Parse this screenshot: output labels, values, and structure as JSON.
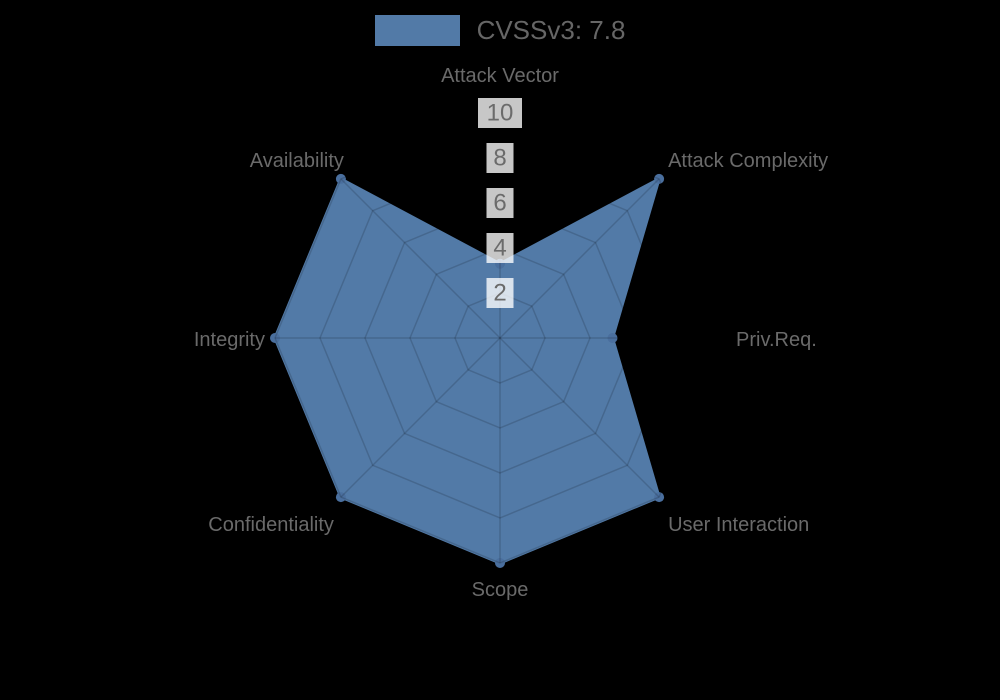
{
  "background_color": "#000000",
  "legend": {
    "label": "CVSSv3: 7.8",
    "swatch_color": "#527aa7",
    "text_color": "#666666"
  },
  "chart_data": {
    "type": "radar",
    "title": "CVSSv3: 7.8",
    "categories": [
      "Attack Vector",
      "Attack Complexity",
      "Priv.Req.",
      "User Interaction",
      "Scope",
      "Confidentiality",
      "Integrity",
      "Availability"
    ],
    "series": [
      {
        "name": "CVSSv3: 7.8",
        "values": [
          3.3,
          10,
          5,
          10,
          10,
          10,
          10,
          10
        ]
      }
    ],
    "scale": {
      "min": 0,
      "max": 10,
      "ticks": [
        2,
        4,
        6,
        8,
        10
      ]
    },
    "grid": true,
    "legend_position": "top",
    "colors": {
      "fill": "#527aa7",
      "border": "#527aa7",
      "marker": "#4a6f9e",
      "grid": "rgba(0,0,0,0.15)",
      "tick_text": "#6b6b6b",
      "tick_backdrop": "rgba(255,255,255,0.78)",
      "axis_label": "#6a6a6a"
    }
  }
}
